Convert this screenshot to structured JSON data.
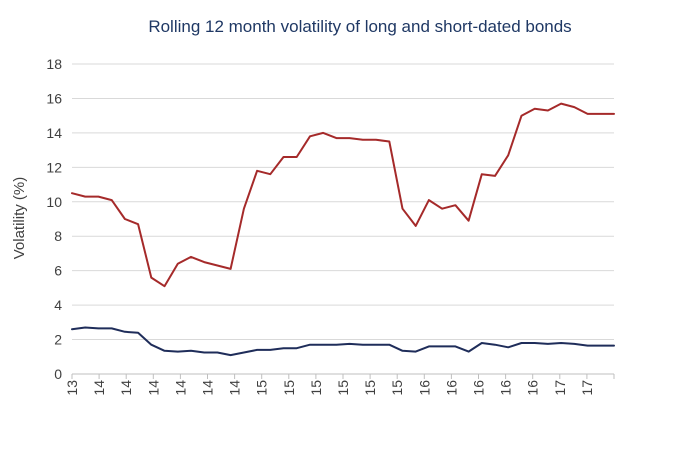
{
  "chart_data": {
    "type": "line",
    "title": "Rolling 12 month volatility of long and short-dated bonds",
    "xlabel": "",
    "ylabel": "Volatility (%)",
    "ylim": [
      0,
      18
    ],
    "yticks": [
      0,
      2,
      4,
      6,
      8,
      10,
      12,
      14,
      16,
      18
    ],
    "grid": true,
    "legend": "none",
    "x_tick_labels": [
      "13",
      "14",
      "14",
      "14",
      "14",
      "14",
      "14",
      "15",
      "15",
      "15",
      "15",
      "15",
      "15",
      "16",
      "16",
      "16",
      "16",
      "16",
      "17",
      "17"
    ],
    "series": [
      {
        "color": "#a52a2a",
        "values": [
          10.5,
          10.3,
          10.3,
          10.1,
          9.0,
          8.7,
          5.6,
          5.1,
          6.4,
          6.8,
          6.5,
          6.3,
          6.1,
          9.6,
          11.8,
          11.6,
          12.6,
          12.6,
          13.8,
          14.0,
          13.7,
          13.7,
          13.6,
          13.6,
          13.5,
          9.6,
          8.6,
          10.1,
          9.6,
          9.8,
          8.9,
          11.6,
          11.5,
          12.7,
          15.0,
          15.4,
          15.3,
          15.7,
          15.5,
          15.1,
          15.1,
          15.1
        ]
      },
      {
        "color": "#1f2d5a",
        "values": [
          2.6,
          2.7,
          2.65,
          2.65,
          2.45,
          2.4,
          1.7,
          1.35,
          1.3,
          1.35,
          1.25,
          1.25,
          1.1,
          1.25,
          1.4,
          1.4,
          1.5,
          1.5,
          1.7,
          1.7,
          1.7,
          1.75,
          1.7,
          1.7,
          1.7,
          1.35,
          1.3,
          1.6,
          1.6,
          1.6,
          1.3,
          1.8,
          1.7,
          1.55,
          1.8,
          1.8,
          1.75,
          1.8,
          1.75,
          1.65,
          1.65,
          1.65
        ]
      }
    ]
  }
}
